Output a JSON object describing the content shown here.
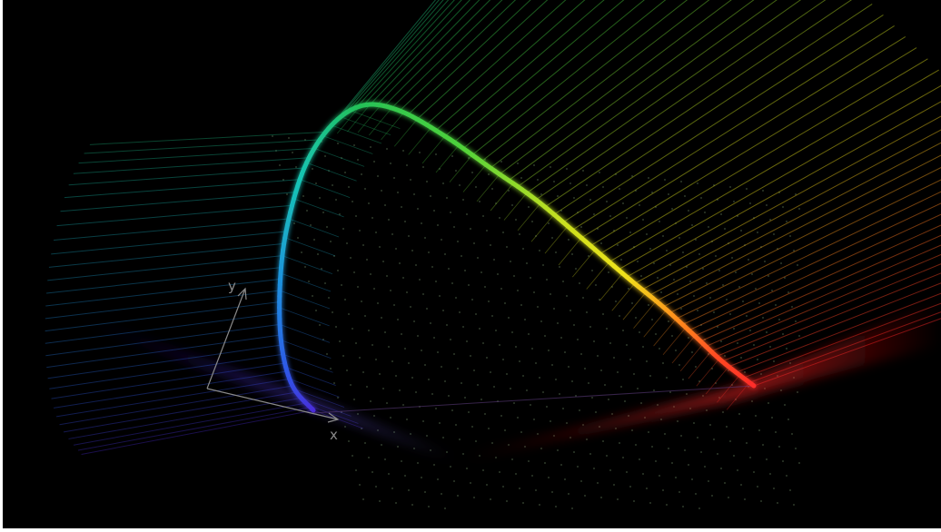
{
  "figure": {
    "background": "#000000",
    "axes": {
      "x_label": "x",
      "y_label": "y",
      "color": "#8a8a8a"
    },
    "locus_colors": {
      "violet": "#4b2bd9",
      "blue": "#1f8fe0",
      "cyan": "#18c4b4",
      "green": "#22c05a",
      "yellow": "#f0e21a",
      "orange": "#ff8a1e",
      "red": "#ff2a2a"
    },
    "dot_color": "#6f8a66"
  }
}
